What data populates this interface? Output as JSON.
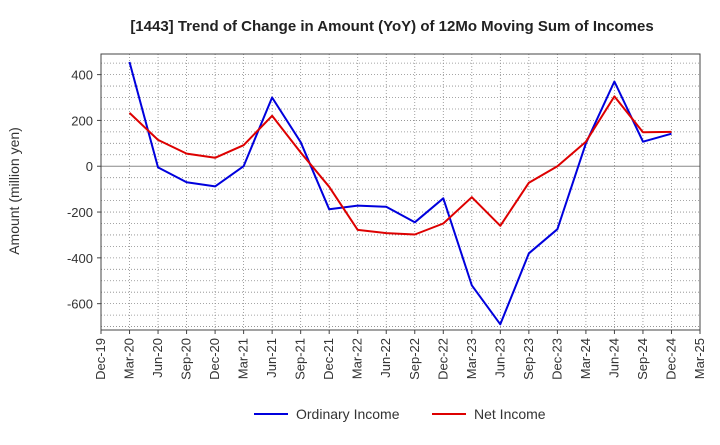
{
  "chart_data": {
    "type": "line",
    "title": "[1443]  Trend of Change in Amount (YoY) of 12Mo Moving Sum of Incomes",
    "xlabel": "",
    "ylabel": "Amount (million yen)",
    "ylim": [
      -715,
      490
    ],
    "yticks": [
      -600,
      -400,
      -200,
      0,
      200,
      400
    ],
    "grid": true,
    "legend_position": "bottom-center",
    "categories": [
      "Dec-19",
      "Mar-20",
      "Jun-20",
      "Sep-20",
      "Dec-20",
      "Mar-21",
      "Jun-21",
      "Sep-21",
      "Dec-21",
      "Mar-22",
      "Jun-22",
      "Sep-22",
      "Dec-22",
      "Mar-23",
      "Jun-23",
      "Sep-23",
      "Dec-23",
      "Mar-24",
      "Jun-24",
      "Sep-24",
      "Dec-24",
      "Mar-25"
    ],
    "series": [
      {
        "name": "Ordinary Income",
        "color": "#0000dd",
        "values": [
          null,
          455,
          -5,
          -70,
          -88,
          0,
          300,
          105,
          -188,
          -172,
          -177,
          -245,
          -140,
          -520,
          -690,
          -380,
          -275,
          100,
          370,
          107,
          142,
          null
        ]
      },
      {
        "name": "Net Income",
        "color": "#dd0000",
        "values": [
          null,
          233,
          115,
          55,
          37,
          92,
          220,
          60,
          -90,
          -278,
          -292,
          -298,
          -250,
          -135,
          -260,
          -72,
          0,
          107,
          305,
          148,
          150,
          null
        ]
      }
    ]
  }
}
